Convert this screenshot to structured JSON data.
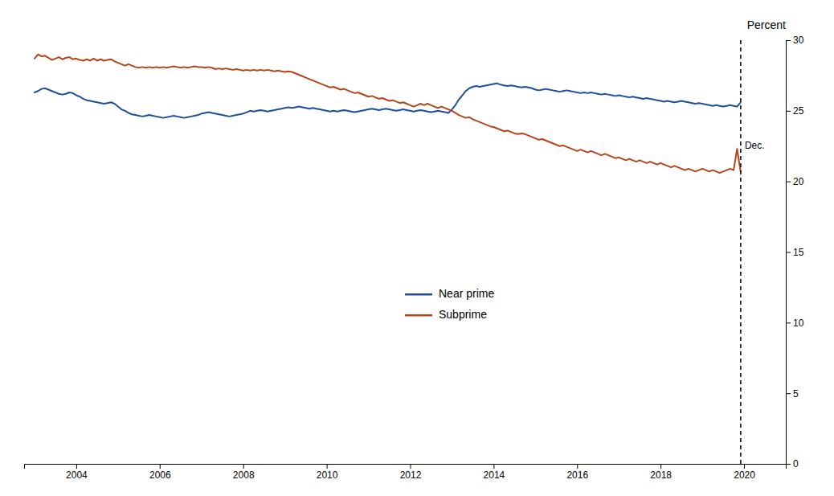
{
  "chart_data": {
    "type": "line",
    "y_label": "Percent",
    "x": [
      2003.0,
      2003.083,
      2003.167,
      2003.25,
      2003.333,
      2003.417,
      2003.5,
      2003.583,
      2003.667,
      2003.75,
      2003.833,
      2003.917,
      2004.0,
      2004.083,
      2004.167,
      2004.25,
      2004.333,
      2004.417,
      2004.5,
      2004.583,
      2004.667,
      2004.75,
      2004.833,
      2004.917,
      2005.0,
      2005.083,
      2005.167,
      2005.25,
      2005.333,
      2005.417,
      2005.5,
      2005.583,
      2005.667,
      2005.75,
      2005.833,
      2005.917,
      2006.0,
      2006.083,
      2006.167,
      2006.25,
      2006.333,
      2006.417,
      2006.5,
      2006.583,
      2006.667,
      2006.75,
      2006.833,
      2006.917,
      2007.0,
      2007.083,
      2007.167,
      2007.25,
      2007.333,
      2007.417,
      2007.5,
      2007.583,
      2007.667,
      2007.75,
      2007.833,
      2007.917,
      2008.0,
      2008.083,
      2008.167,
      2008.25,
      2008.333,
      2008.417,
      2008.5,
      2008.583,
      2008.667,
      2008.75,
      2008.833,
      2008.917,
      2009.0,
      2009.083,
      2009.167,
      2009.25,
      2009.333,
      2009.417,
      2009.5,
      2009.583,
      2009.667,
      2009.75,
      2009.833,
      2009.917,
      2010.0,
      2010.083,
      2010.167,
      2010.25,
      2010.333,
      2010.417,
      2010.5,
      2010.583,
      2010.667,
      2010.75,
      2010.833,
      2010.917,
      2011.0,
      2011.083,
      2011.167,
      2011.25,
      2011.333,
      2011.417,
      2011.5,
      2011.583,
      2011.667,
      2011.75,
      2011.833,
      2011.917,
      2012.0,
      2012.083,
      2012.167,
      2012.25,
      2012.333,
      2012.417,
      2012.5,
      2012.583,
      2012.667,
      2012.75,
      2012.833,
      2012.917,
      2013.0,
      2013.083,
      2013.167,
      2013.25,
      2013.333,
      2013.417,
      2013.5,
      2013.583,
      2013.667,
      2013.75,
      2013.833,
      2013.917,
      2014.0,
      2014.083,
      2014.167,
      2014.25,
      2014.333,
      2014.417,
      2014.5,
      2014.583,
      2014.667,
      2014.75,
      2014.833,
      2014.917,
      2015.0,
      2015.083,
      2015.167,
      2015.25,
      2015.333,
      2015.417,
      2015.5,
      2015.583,
      2015.667,
      2015.75,
      2015.833,
      2015.917,
      2016.0,
      2016.083,
      2016.167,
      2016.25,
      2016.333,
      2016.417,
      2016.5,
      2016.583,
      2016.667,
      2016.75,
      2016.833,
      2016.917,
      2017.0,
      2017.083,
      2017.167,
      2017.25,
      2017.333,
      2017.417,
      2017.5,
      2017.583,
      2017.667,
      2017.75,
      2017.833,
      2017.917,
      2018.0,
      2018.083,
      2018.167,
      2018.25,
      2018.333,
      2018.417,
      2018.5,
      2018.583,
      2018.667,
      2018.75,
      2018.833,
      2018.917,
      2019.0,
      2019.083,
      2019.167,
      2019.25,
      2019.333,
      2019.417,
      2019.5,
      2019.583,
      2019.667,
      2019.75,
      2019.833,
      2019.917
    ],
    "series": [
      {
        "name": "Near prime",
        "color": "#1f4e9e",
        "values": [
          26.3,
          26.4,
          26.55,
          26.6,
          26.5,
          26.4,
          26.3,
          26.2,
          26.15,
          26.2,
          26.3,
          26.25,
          26.1,
          26.0,
          25.85,
          25.75,
          25.7,
          25.65,
          25.6,
          25.55,
          25.5,
          25.55,
          25.6,
          25.5,
          25.3,
          25.1,
          25.0,
          24.85,
          24.75,
          24.7,
          24.65,
          24.6,
          24.65,
          24.7,
          24.65,
          24.6,
          24.55,
          24.5,
          24.55,
          24.6,
          24.65,
          24.6,
          24.55,
          24.5,
          24.55,
          24.6,
          24.65,
          24.7,
          24.8,
          24.85,
          24.9,
          24.85,
          24.8,
          24.75,
          24.7,
          24.65,
          24.6,
          24.65,
          24.7,
          24.75,
          24.8,
          24.9,
          25.0,
          24.95,
          25.0,
          25.05,
          25.0,
          24.95,
          25.0,
          25.05,
          25.1,
          25.15,
          25.2,
          25.25,
          25.2,
          25.25,
          25.3,
          25.25,
          25.2,
          25.15,
          25.2,
          25.15,
          25.1,
          25.05,
          25.0,
          24.95,
          25.0,
          24.95,
          25.0,
          25.05,
          25.0,
          24.95,
          24.9,
          24.95,
          25.0,
          25.05,
          25.1,
          25.15,
          25.1,
          25.05,
          25.1,
          25.15,
          25.1,
          25.05,
          25.0,
          25.05,
          25.1,
          25.05,
          25.0,
          24.95,
          25.0,
          25.05,
          25.0,
          24.95,
          24.9,
          24.95,
          25.0,
          24.95,
          24.9,
          24.85,
          25.1,
          25.4,
          25.8,
          26.1,
          26.4,
          26.6,
          26.7,
          26.75,
          26.7,
          26.75,
          26.8,
          26.85,
          26.9,
          26.95,
          26.85,
          26.8,
          26.75,
          26.8,
          26.75,
          26.7,
          26.65,
          26.7,
          26.65,
          26.6,
          26.5,
          26.45,
          26.5,
          26.55,
          26.5,
          26.45,
          26.4,
          26.35,
          26.4,
          26.45,
          26.4,
          26.35,
          26.3,
          26.25,
          26.3,
          26.25,
          26.3,
          26.25,
          26.2,
          26.15,
          26.2,
          26.15,
          26.1,
          26.05,
          26.1,
          26.05,
          26.0,
          25.95,
          26.0,
          25.95,
          25.9,
          25.85,
          25.9,
          25.85,
          25.8,
          25.75,
          25.7,
          25.65,
          25.7,
          25.65,
          25.6,
          25.65,
          25.7,
          25.65,
          25.6,
          25.55,
          25.5,
          25.55,
          25.5,
          25.45,
          25.4,
          25.35,
          25.4,
          25.35,
          25.3,
          25.35,
          25.4,
          25.35,
          25.3,
          25.6
        ]
      },
      {
        "name": "Subprime",
        "color": "#b5451b",
        "values": [
          28.7,
          29.0,
          28.85,
          28.9,
          28.75,
          28.6,
          28.7,
          28.8,
          28.65,
          28.75,
          28.8,
          28.65,
          28.7,
          28.6,
          28.55,
          28.65,
          28.55,
          28.7,
          28.55,
          28.65,
          28.55,
          28.6,
          28.65,
          28.5,
          28.4,
          28.3,
          28.2,
          28.3,
          28.2,
          28.1,
          28.05,
          28.1,
          28.05,
          28.1,
          28.05,
          28.1,
          28.05,
          28.1,
          28.05,
          28.1,
          28.15,
          28.1,
          28.05,
          28.1,
          28.05,
          28.1,
          28.15,
          28.1,
          28.1,
          28.05,
          28.1,
          28.05,
          27.95,
          28.0,
          27.95,
          28.0,
          27.95,
          27.9,
          27.95,
          27.9,
          27.85,
          27.9,
          27.85,
          27.9,
          27.85,
          27.9,
          27.85,
          27.9,
          27.85,
          27.8,
          27.85,
          27.8,
          27.75,
          27.8,
          27.75,
          27.65,
          27.55,
          27.45,
          27.35,
          27.25,
          27.15,
          27.05,
          26.95,
          26.85,
          26.75,
          26.65,
          26.7,
          26.6,
          26.5,
          26.55,
          26.45,
          26.35,
          26.25,
          26.3,
          26.2,
          26.1,
          26.0,
          26.05,
          25.95,
          25.85,
          25.9,
          25.8,
          25.7,
          25.75,
          25.65,
          25.55,
          25.6,
          25.5,
          25.4,
          25.3,
          25.4,
          25.5,
          25.4,
          25.5,
          25.4,
          25.3,
          25.2,
          25.3,
          25.2,
          25.1,
          25.0,
          24.85,
          24.7,
          24.6,
          24.5,
          24.55,
          24.4,
          24.3,
          24.2,
          24.1,
          24.0,
          23.9,
          23.85,
          23.75,
          23.65,
          23.55,
          23.6,
          23.5,
          23.4,
          23.35,
          23.4,
          23.35,
          23.25,
          23.15,
          23.05,
          22.95,
          23.0,
          22.9,
          22.8,
          22.7,
          22.6,
          22.5,
          22.55,
          22.45,
          22.35,
          22.25,
          22.15,
          22.25,
          22.15,
          22.05,
          22.15,
          22.05,
          21.95,
          21.85,
          21.95,
          21.85,
          21.75,
          21.65,
          21.7,
          21.6,
          21.5,
          21.6,
          21.5,
          21.4,
          21.5,
          21.4,
          21.3,
          21.4,
          21.3,
          21.2,
          21.3,
          21.2,
          21.1,
          21.0,
          21.1,
          21.0,
          20.9,
          20.8,
          20.9,
          20.8,
          20.7,
          20.8,
          20.9,
          20.8,
          20.7,
          20.8,
          20.7,
          20.6,
          20.7,
          20.8,
          20.9,
          20.8,
          22.3,
          20.7
        ]
      }
    ],
    "xlim": [
      2002.75,
      2021.0
    ],
    "xticks": [
      2004,
      2006,
      2008,
      2010,
      2012,
      2014,
      2016,
      2018,
      2020
    ],
    "ylim": [
      0,
      30
    ],
    "yticks": [
      0,
      5,
      10,
      15,
      20,
      25,
      30
    ],
    "annotations": [
      {
        "type": "vline",
        "x": 2019.92,
        "label": "Dec."
      }
    ],
    "legend": "lower center",
    "grid": false
  }
}
